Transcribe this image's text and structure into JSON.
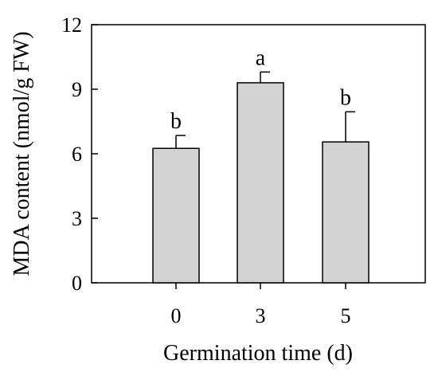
{
  "chart_data": {
    "type": "bar",
    "title": "",
    "xlabel": "Germination time (d)",
    "ylabel": "MDA content (nmol/g FW)",
    "categories": [
      "0",
      "3",
      "5"
    ],
    "values": [
      6.25,
      9.3,
      6.55
    ],
    "errors": [
      0.6,
      0.5,
      1.4
    ],
    "significance": [
      "b",
      "a",
      "b"
    ],
    "ylim": [
      0,
      12
    ],
    "yticks": [
      "0",
      "3",
      "6",
      "9",
      "12"
    ],
    "grid": false,
    "legend": "none",
    "bar_color": "#d3d3d3",
    "edge_color": "#000000"
  }
}
